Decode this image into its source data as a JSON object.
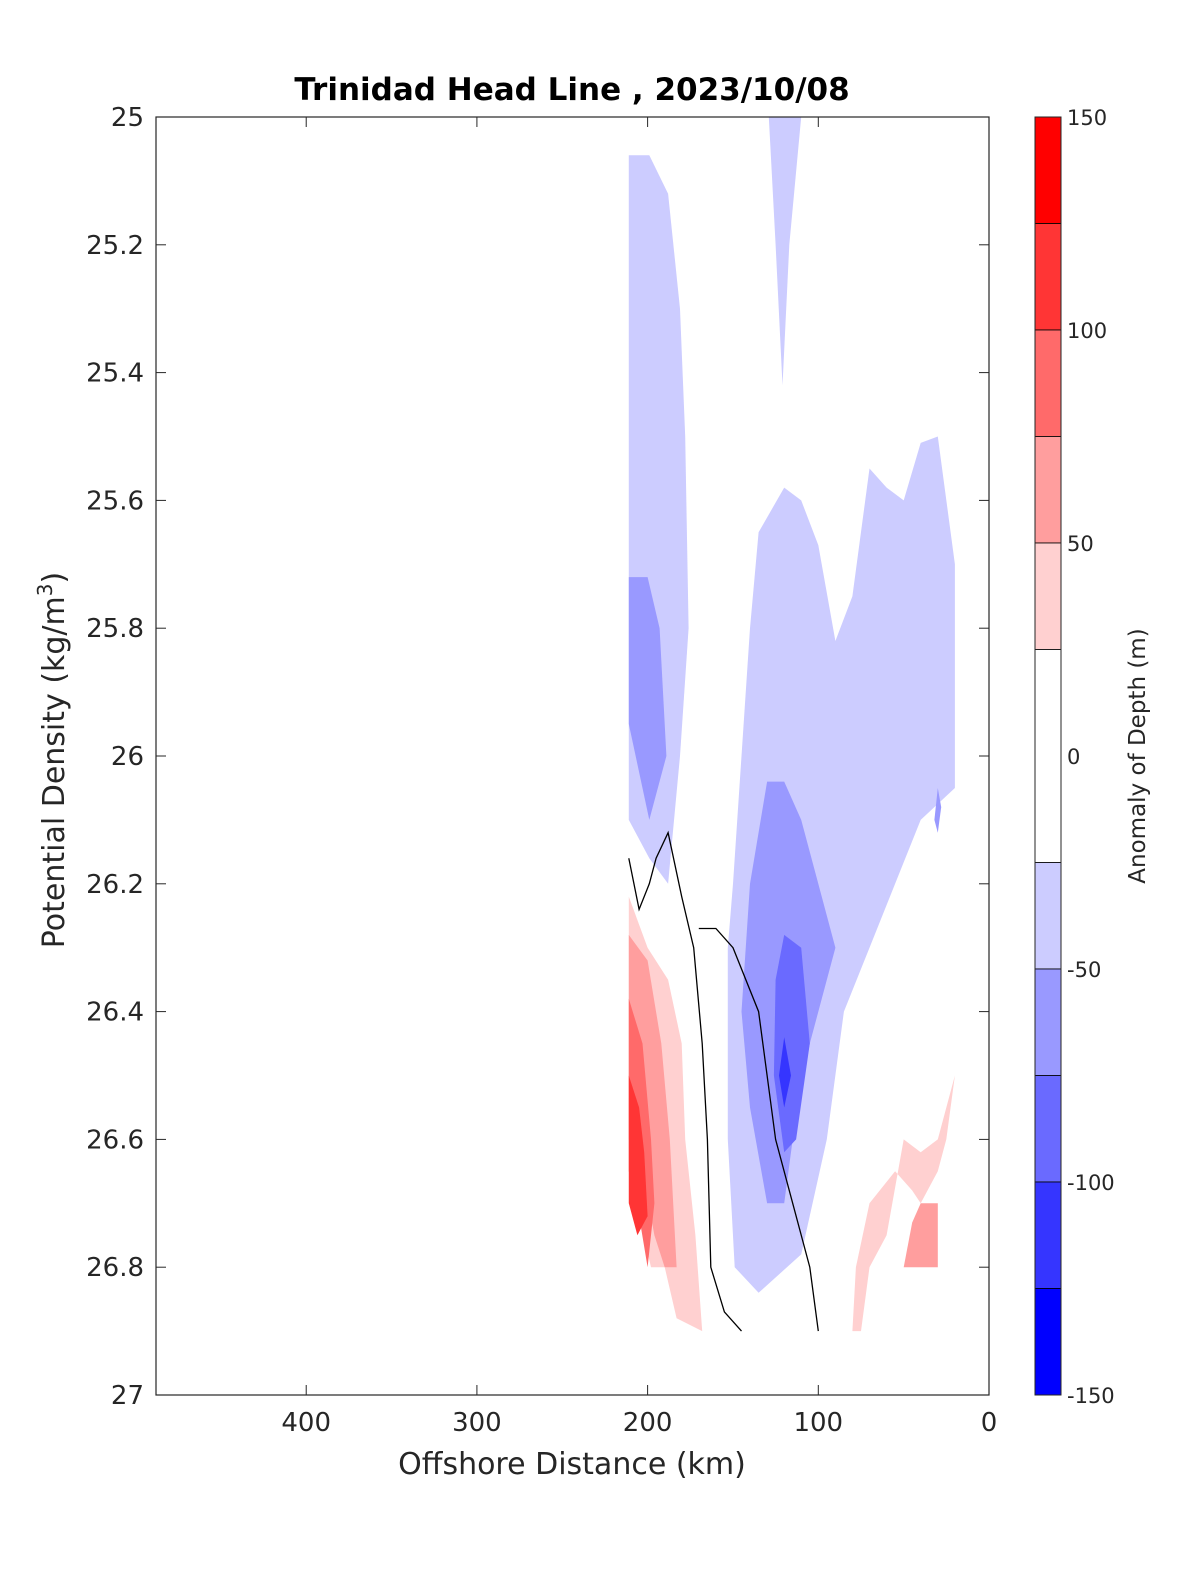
{
  "chart_data": {
    "type": "contour",
    "title": "Trinidad Head Line , 2023/10/08",
    "xlabel": "Offshore Distance (km)",
    "ylabel_main": "Potential Density (kg/m",
    "ylabel_sup": "3",
    "ylabel_end": ")",
    "colorbar_label": "Anomaly of Depth (m)",
    "xlim": [
      488,
      0
    ],
    "x_reversed": true,
    "ylim": [
      25,
      27
    ],
    "y_reversed": true,
    "x_ticks": [
      400,
      300,
      200,
      100,
      0
    ],
    "x_tick_labels": [
      "400",
      "300",
      "200",
      "100",
      "0"
    ],
    "y_ticks": [
      25,
      25.2,
      25.4,
      25.6,
      25.8,
      26,
      26.2,
      26.4,
      26.6,
      26.8,
      27
    ],
    "y_tick_labels": [
      "25",
      "25.2",
      "25.4",
      "25.6",
      "25.8",
      "26",
      "26.2",
      "26.4",
      "26.6",
      "26.8",
      "27"
    ],
    "colorbar": {
      "range": [
        -150,
        150
      ],
      "ticks": [
        150,
        100,
        50,
        0,
        -50,
        -100,
        -150
      ],
      "tick_labels": [
        "150",
        "100",
        "50",
        "0",
        "-50",
        "-100",
        "-150"
      ],
      "levels": [
        {
          "min": 125,
          "max": 150,
          "color": "#ff0000"
        },
        {
          "min": 100,
          "max": 125,
          "color": "#ff3535"
        },
        {
          "min": 75,
          "max": 100,
          "color": "#ff6a6a"
        },
        {
          "min": 50,
          "max": 75,
          "color": "#ff9e9e"
        },
        {
          "min": 25,
          "max": 50,
          "color": "#ffd0d0"
        },
        {
          "min": -25,
          "max": 25,
          "color": "#ffffff"
        },
        {
          "min": -50,
          "max": -25,
          "color": "#ccccff"
        },
        {
          "min": -75,
          "max": -50,
          "color": "#9999ff"
        },
        {
          "min": -100,
          "max": -75,
          "color": "#6a6aff"
        },
        {
          "min": -125,
          "max": -100,
          "color": "#3535ff"
        },
        {
          "min": -150,
          "max": -125,
          "color": "#0000ff"
        }
      ]
    },
    "regions": [
      {
        "level": -37.5,
        "color": "#ccccff",
        "points": [
          [
            211,
            25.06
          ],
          [
            199,
            25.06
          ],
          [
            188,
            25.12
          ],
          [
            181,
            25.3
          ],
          [
            178,
            25.5
          ],
          [
            176,
            25.8
          ],
          [
            181,
            26.0
          ],
          [
            188,
            26.2
          ],
          [
            199,
            26.16
          ],
          [
            211,
            26.1
          ]
        ]
      },
      {
        "level": -37.5,
        "color": "#ccccff",
        "points": [
          [
            129,
            25.0
          ],
          [
            110,
            25.0
          ],
          [
            117,
            25.2
          ],
          [
            121,
            25.42
          ],
          [
            125,
            25.2
          ]
        ]
      },
      {
        "level": -37.5,
        "color": "#ccccff",
        "points": [
          [
            153,
            26.3
          ],
          [
            153,
            26.6
          ],
          [
            149,
            26.8
          ],
          [
            135,
            26.84
          ],
          [
            110,
            26.78
          ],
          [
            95,
            26.6
          ],
          [
            85,
            26.4
          ],
          [
            70,
            26.3
          ],
          [
            55,
            26.2
          ],
          [
            40,
            26.1
          ],
          [
            20,
            26.05
          ],
          [
            20,
            25.7
          ],
          [
            30,
            25.5
          ],
          [
            40,
            25.51
          ],
          [
            50,
            25.6
          ],
          [
            60,
            25.58
          ],
          [
            70,
            25.55
          ],
          [
            80,
            25.75
          ],
          [
            90,
            25.82
          ],
          [
            100,
            25.67
          ],
          [
            110,
            25.6
          ],
          [
            120,
            25.58
          ],
          [
            135,
            25.65
          ],
          [
            140,
            25.8
          ],
          [
            145,
            26.0
          ],
          [
            150,
            26.2
          ]
        ]
      },
      {
        "level": -62.5,
        "color": "#9999ff",
        "points": [
          [
            211,
            25.72
          ],
          [
            200,
            25.72
          ],
          [
            193,
            25.8
          ],
          [
            189,
            26.0
          ],
          [
            199,
            26.1
          ],
          [
            211,
            25.95
          ]
        ]
      },
      {
        "level": -62.5,
        "color": "#9999ff",
        "points": [
          [
            130,
            26.04
          ],
          [
            120,
            26.04
          ],
          [
            110,
            26.1
          ],
          [
            100,
            26.2
          ],
          [
            90,
            26.3
          ],
          [
            105,
            26.45
          ],
          [
            115,
            26.6
          ],
          [
            120,
            26.7
          ],
          [
            130,
            26.7
          ],
          [
            140,
            26.55
          ],
          [
            145,
            26.4
          ],
          [
            140,
            26.2
          ]
        ]
      },
      {
        "level": -62.5,
        "color": "#9999ff",
        "points": [
          [
            30,
            26.05
          ],
          [
            32,
            26.1
          ],
          [
            30,
            26.12
          ],
          [
            28,
            26.08
          ]
        ]
      },
      {
        "level": -87.5,
        "color": "#6a6aff",
        "points": [
          [
            120,
            26.28
          ],
          [
            110,
            26.3
          ],
          [
            105,
            26.45
          ],
          [
            113,
            26.6
          ],
          [
            120,
            26.62
          ],
          [
            126,
            26.5
          ],
          [
            125,
            26.35
          ]
        ]
      },
      {
        "level": -112.5,
        "color": "#3535ff",
        "points": [
          [
            120,
            26.44
          ],
          [
            116,
            26.5
          ],
          [
            120,
            26.55
          ],
          [
            123,
            26.5
          ]
        ]
      },
      {
        "level": 37.5,
        "color": "#ffd0d0",
        "points": [
          [
            211,
            26.22
          ],
          [
            211,
            26.7
          ],
          [
            205,
            26.72
          ],
          [
            198,
            26.8
          ],
          [
            190,
            26.8
          ],
          [
            183,
            26.88
          ],
          [
            168,
            26.9
          ],
          [
            172,
            26.75
          ],
          [
            178,
            26.6
          ],
          [
            180,
            26.45
          ],
          [
            188,
            26.35
          ],
          [
            200,
            26.3
          ]
        ]
      },
      {
        "level": 62.5,
        "color": "#ff9e9e",
        "points": [
          [
            211,
            26.28
          ],
          [
            200,
            26.32
          ],
          [
            192,
            26.45
          ],
          [
            187,
            26.6
          ],
          [
            183,
            26.8
          ],
          [
            190,
            26.8
          ],
          [
            196,
            26.75
          ],
          [
            203,
            26.65
          ],
          [
            211,
            26.6
          ]
        ]
      },
      {
        "level": 87.5,
        "color": "#ff6a6a",
        "points": [
          [
            211,
            26.38
          ],
          [
            203,
            26.45
          ],
          [
            198,
            26.6
          ],
          [
            196,
            26.7
          ],
          [
            200,
            26.8
          ],
          [
            205,
            26.72
          ],
          [
            211,
            26.65
          ]
        ]
      },
      {
        "level": 112.5,
        "color": "#ff3535",
        "points": [
          [
            211,
            26.5
          ],
          [
            205,
            26.55
          ],
          [
            202,
            26.62
          ],
          [
            200,
            26.72
          ],
          [
            206,
            26.75
          ],
          [
            211,
            26.7
          ]
        ]
      },
      {
        "level": 37.5,
        "color": "#ffd0d0",
        "points": [
          [
            20,
            26.5
          ],
          [
            30,
            26.6
          ],
          [
            40,
            26.62
          ],
          [
            50,
            26.6
          ],
          [
            60,
            26.75
          ],
          [
            70,
            26.8
          ],
          [
            75,
            26.9
          ],
          [
            80,
            26.9
          ],
          [
            78,
            26.8
          ],
          [
            70,
            26.7
          ],
          [
            55,
            26.65
          ],
          [
            45,
            26.68
          ],
          [
            40,
            26.7
          ],
          [
            30,
            26.65
          ],
          [
            25,
            26.6
          ]
        ]
      },
      {
        "level": 62.5,
        "color": "#ff9e9e",
        "points": [
          [
            30,
            26.7
          ],
          [
            40,
            26.7
          ],
          [
            45,
            26.73
          ],
          [
            50,
            26.8
          ],
          [
            30,
            26.8
          ]
        ]
      }
    ],
    "zero_contours": [
      {
        "points": [
          [
            211,
            26.16
          ],
          [
            205,
            26.24
          ],
          [
            199,
            26.2
          ],
          [
            195,
            26.16
          ],
          [
            188,
            26.12
          ],
          [
            180,
            26.22
          ],
          [
            173,
            26.3
          ],
          [
            168,
            26.45
          ],
          [
            165,
            26.6
          ],
          [
            163,
            26.8
          ],
          [
            155,
            26.87
          ],
          [
            145,
            26.9
          ]
        ]
      },
      {
        "points": [
          [
            100,
            26.9
          ],
          [
            105,
            26.8
          ],
          [
            115,
            26.7
          ],
          [
            125,
            26.6
          ],
          [
            135,
            26.4
          ],
          [
            150,
            26.3
          ],
          [
            160,
            26.27
          ],
          [
            170,
            26.27
          ]
        ]
      }
    ]
  }
}
